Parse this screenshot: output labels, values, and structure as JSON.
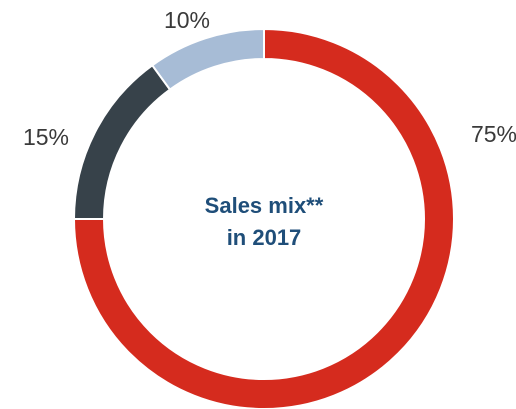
{
  "chart_data": {
    "type": "pie",
    "variant": "donut",
    "categories": [
      "75%",
      "15%",
      "10%"
    ],
    "values": [
      75,
      15,
      10
    ],
    "unit": "%",
    "colors": [
      "#d52b1e",
      "#37424a",
      "#a7bcd6"
    ],
    "slice_labels": [
      "75%",
      "15%",
      "10%"
    ],
    "center_title": [
      "Sales mix**",
      "in 2017"
    ],
    "start": "12 o'clock",
    "direction": "clockwise"
  }
}
